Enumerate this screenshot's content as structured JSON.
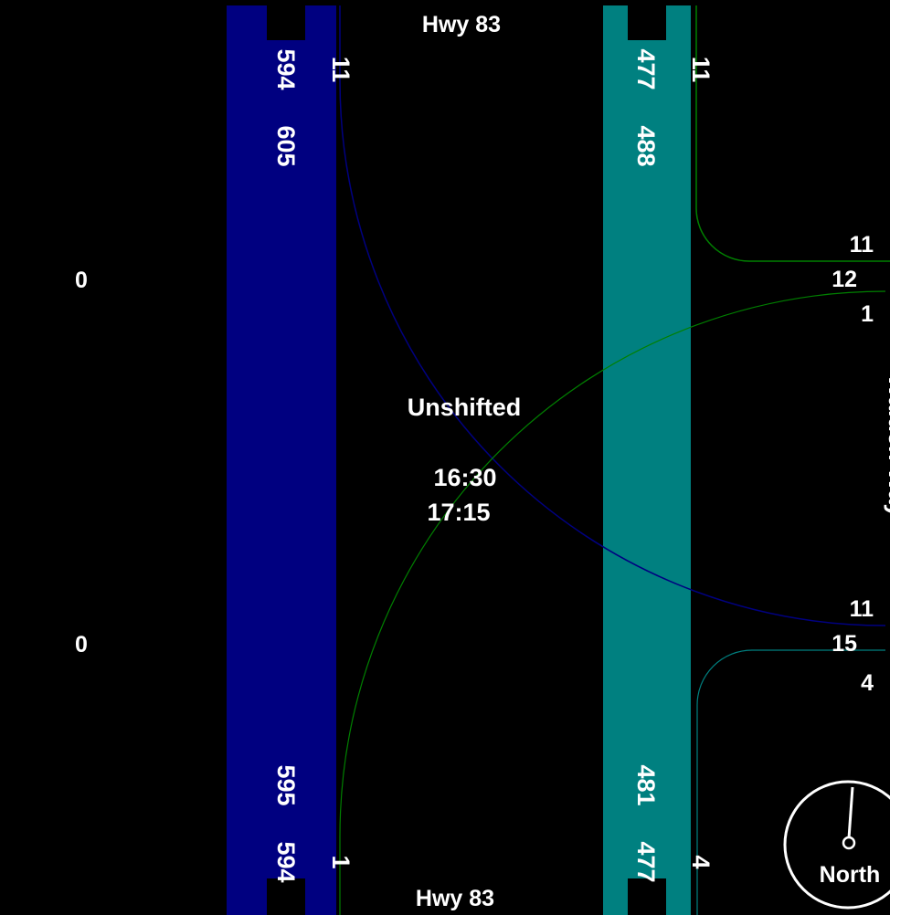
{
  "title": "Unshifted",
  "times": {
    "start": "16:30",
    "end": "17:15"
  },
  "roads": {
    "north": "Hwy 83",
    "south": "Hwy 83",
    "east": "Walden Way"
  },
  "compass_label": "North",
  "colors": {
    "background": "#000000",
    "southbound_band": "#000080",
    "northbound_band": "#008080",
    "green_flow": "#008000",
    "blue_flow": "#000080",
    "teal_flow": "#008080",
    "text": "#ffffff"
  },
  "southbound": {
    "north_end": {
      "a": "594",
      "b": "605",
      "turn": "11"
    },
    "south_end": {
      "a": "594",
      "b": "595",
      "turn": "1"
    }
  },
  "northbound": {
    "north_end": {
      "a": "477",
      "b": "488",
      "turn": "11"
    },
    "south_end": {
      "a": "477",
      "b": "481",
      "turn": "4"
    }
  },
  "west_counts": {
    "upper": "0",
    "lower": "0"
  },
  "east_counts": {
    "upper": [
      "11",
      "12",
      "1"
    ],
    "lower": [
      "11",
      "15",
      "4"
    ]
  }
}
